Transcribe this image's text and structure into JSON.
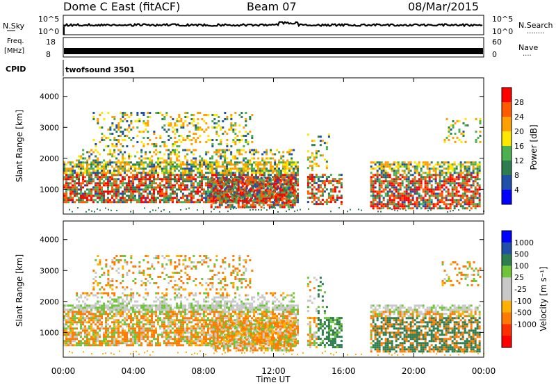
{
  "header": {
    "station": "Dome C East (fitACF)",
    "beam": "Beam 07",
    "date": "08/Mar/2015"
  },
  "nsky_panel": {
    "label": "N.Sky",
    "ticks_left": [
      "10^5",
      "10^0"
    ],
    "ticks_right": [
      "10^5",
      "10^0"
    ],
    "right_label": "N.Search",
    "right_dots": "........"
  },
  "freq_panel": {
    "label_line1": "Freq.",
    "label_line2": "[MHz]",
    "ticks_left": [
      "18",
      "8"
    ],
    "ticks_right": [
      "60",
      "0"
    ],
    "right_label": "Nave",
    "right_dots": "...."
  },
  "cpid": {
    "label": "CPID",
    "value": "twofsound 3501"
  },
  "colors": {
    "power_scale": [
      "#0000ff",
      "#1f4fa8",
      "#2e7d4f",
      "#4caf50",
      "#ffe800",
      "#ff9f00",
      "#ff5a00",
      "#ff0000"
    ],
    "velocity_scale": [
      "#ff0000",
      "#ff3000",
      "#ff7a00",
      "#ffb000",
      "#c8c8c8",
      "#c8c8c8",
      "#6fc43a",
      "#2e7d4f",
      "#1f4fa8",
      "#0000ff"
    ]
  },
  "chart_data": [
    {
      "type": "heatmap",
      "ylabel": "Slant Range [km]",
      "xlabel": "Time UT",
      "x_ticks": [
        "00:00",
        "04:00",
        "08:00",
        "12:00",
        "16:00",
        "20:00",
        "00:00"
      ],
      "y_ticks": [
        "1000",
        "2000",
        "3000",
        "4000"
      ],
      "ylim": [
        200,
        4600
      ],
      "colorbar": {
        "label": "Power [dB]",
        "ticks": [
          "28",
          "24",
          "20",
          "16",
          "12",
          "8",
          "4"
        ],
        "range": [
          0,
          32
        ]
      }
    },
    {
      "type": "heatmap",
      "ylabel": "Slant Range [km]",
      "xlabel": "Time UT",
      "x_ticks": [
        "00:00",
        "04:00",
        "08:00",
        "12:00",
        "16:00",
        "20:00",
        "00:00"
      ],
      "y_ticks": [
        "1000",
        "2000",
        "3000",
        "4000"
      ],
      "ylim": [
        200,
        4600
      ],
      "colorbar": {
        "label": "Velocity [m s⁻¹]",
        "ticks": [
          "1000",
          "500",
          "100",
          "25",
          "-25",
          "-100",
          "-500",
          "-1000"
        ]
      }
    }
  ]
}
